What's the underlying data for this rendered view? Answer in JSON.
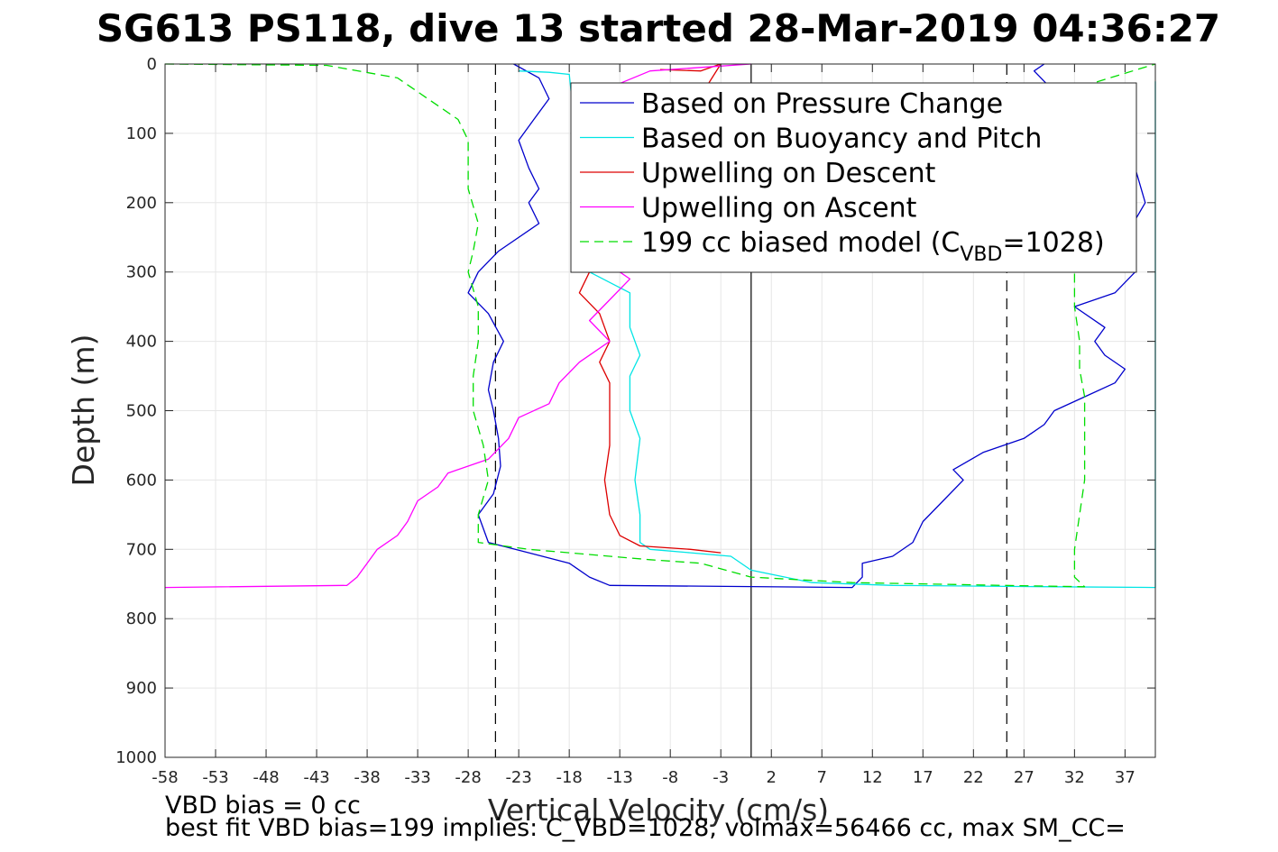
{
  "chart_data": {
    "type": "line",
    "title": "SG613 PS118, dive 13 started 28-Mar-2019 04:36:27",
    "xlabel": "Vertical Velocity (cm/s)",
    "ylabel": "Depth (m)",
    "xlim": [
      -58,
      40
    ],
    "ylim": [
      0,
      1000
    ],
    "y_reversed": true,
    "grid": true,
    "legend_location": "top-right",
    "x_ticks": [
      -58,
      -53,
      -48,
      -43,
      -38,
      -33,
      -28,
      -23,
      -18,
      -13,
      -8,
      -3,
      2,
      7,
      12,
      17,
      22,
      27,
      32,
      37
    ],
    "x_tick_labels": [
      "-58",
      "-53",
      "-48",
      "-43",
      "-38",
      "-33",
      "-28",
      "-23",
      "-18",
      "-13",
      "-8",
      "-3",
      "2",
      "7",
      "12",
      "17",
      "22",
      "27",
      "32",
      "37"
    ],
    "y_ticks": [
      0,
      100,
      200,
      300,
      400,
      500,
      600,
      700,
      800,
      900,
      1000
    ],
    "y_tick_labels": [
      "0",
      "100",
      "200",
      "300",
      "400",
      "500",
      "600",
      "700",
      "800",
      "900",
      "1000"
    ],
    "reference_lines": [
      {
        "x": -25.3,
        "style": "dashed",
        "color": "#000000"
      },
      {
        "x": 0,
        "style": "solid",
        "color": "#000000"
      },
      {
        "x": 25.3,
        "style": "dashed",
        "color": "#000000"
      }
    ],
    "series": [
      {
        "name": "Based on Pressure Change",
        "color": "#0000cc",
        "style": "solid",
        "points": [
          [
            -23.5,
            0
          ],
          [
            -21,
            20
          ],
          [
            -20,
            50
          ],
          [
            -21.5,
            80
          ],
          [
            -23,
            110
          ],
          [
            -22,
            150
          ],
          [
            -21,
            180
          ],
          [
            -22,
            200
          ],
          [
            -21,
            230
          ],
          [
            -25,
            270
          ],
          [
            -27,
            300
          ],
          [
            -28,
            330
          ],
          [
            -26,
            360
          ],
          [
            -24.5,
            400
          ],
          [
            -25.5,
            430
          ],
          [
            -26,
            470
          ],
          [
            -25.5,
            500
          ],
          [
            -25,
            540
          ],
          [
            -24.8,
            580
          ],
          [
            -25.5,
            620
          ],
          [
            -27,
            650
          ],
          [
            -26,
            690
          ],
          [
            -22,
            705
          ],
          [
            -18,
            720
          ],
          [
            -16,
            740
          ],
          [
            -14,
            752
          ],
          [
            10,
            755
          ],
          [
            11,
            740
          ],
          [
            11,
            720
          ],
          [
            14,
            710
          ],
          [
            16,
            690
          ],
          [
            17,
            660
          ],
          [
            19,
            630
          ],
          [
            21,
            600
          ],
          [
            20,
            585
          ],
          [
            23,
            560
          ],
          [
            27,
            540
          ],
          [
            29,
            520
          ],
          [
            30,
            500
          ],
          [
            33,
            480
          ],
          [
            36,
            460
          ],
          [
            37,
            440
          ],
          [
            35,
            420
          ],
          [
            34,
            400
          ],
          [
            35,
            380
          ],
          [
            32,
            350
          ],
          [
            36,
            330
          ],
          [
            38,
            300
          ],
          [
            37,
            250
          ],
          [
            39,
            200
          ],
          [
            38,
            150
          ],
          [
            35,
            100
          ],
          [
            30,
            40
          ],
          [
            28,
            10
          ],
          [
            29,
            0
          ]
        ]
      },
      {
        "name": "Based on Buoyancy and Pitch",
        "color": "#00e5e5",
        "style": "solid",
        "points": [
          [
            -23,
            10
          ],
          [
            -20,
            12
          ],
          [
            -18,
            15
          ],
          [
            -16,
            300
          ],
          [
            -12,
            330
          ],
          [
            -12,
            380
          ],
          [
            -11,
            420
          ],
          [
            -12,
            450
          ],
          [
            -12,
            500
          ],
          [
            -11,
            540
          ],
          [
            -11.5,
            600
          ],
          [
            -11,
            650
          ],
          [
            -11,
            690
          ],
          [
            -10,
            700
          ],
          [
            -6,
            705
          ],
          [
            -2,
            710
          ],
          [
            0,
            730
          ],
          [
            6,
            748
          ],
          [
            14,
            752
          ],
          [
            30,
            754
          ],
          [
            40,
            755
          ],
          [
            40,
            754
          ],
          [
            40,
            25
          ]
        ]
      },
      {
        "name": "Upwelling on Descent",
        "color": "#dd0000",
        "style": "solid",
        "points": [
          [
            -9,
            8
          ],
          [
            -5,
            10
          ],
          [
            -4,
            5
          ],
          [
            -3,
            0
          ],
          [
            -16,
            300
          ],
          [
            -17,
            330
          ],
          [
            -15,
            360
          ],
          [
            -14,
            400
          ],
          [
            -15,
            430
          ],
          [
            -14,
            460
          ],
          [
            -14,
            500
          ],
          [
            -14,
            550
          ],
          [
            -14.5,
            600
          ],
          [
            -14,
            650
          ],
          [
            -13,
            680
          ],
          [
            -11,
            695
          ],
          [
            -6,
            700
          ],
          [
            -3,
            705
          ]
        ]
      },
      {
        "name": "Upwelling on Ascent",
        "color": "#ff00ff",
        "style": "solid",
        "points": [
          [
            -58,
            755
          ],
          [
            -40,
            752
          ],
          [
            -39,
            740
          ],
          [
            -38,
            720
          ],
          [
            -37,
            700
          ],
          [
            -35,
            680
          ],
          [
            -34,
            660
          ],
          [
            -33,
            630
          ],
          [
            -31,
            610
          ],
          [
            -30,
            590
          ],
          [
            -26,
            570
          ],
          [
            -24,
            540
          ],
          [
            -23,
            510
          ],
          [
            -20,
            490
          ],
          [
            -19,
            460
          ],
          [
            -17,
            430
          ],
          [
            -14,
            400
          ],
          [
            -16,
            370
          ],
          [
            -14,
            340
          ],
          [
            -12,
            310
          ],
          [
            -13,
            300
          ],
          [
            -17,
            80
          ],
          [
            -15,
            40
          ],
          [
            -10,
            10
          ],
          [
            -5,
            5
          ],
          [
            0,
            0
          ]
        ]
      },
      {
        "name": "199 cc biased model (C",
        "color": "#00dd00",
        "style": "dashed",
        "points": [
          [
            -58,
            0
          ],
          [
            -42,
            2
          ],
          [
            -35,
            20
          ],
          [
            -32,
            50
          ],
          [
            -29,
            80
          ],
          [
            -28,
            110
          ],
          [
            -28,
            150
          ],
          [
            -28,
            180
          ],
          [
            -27,
            230
          ],
          [
            -27.5,
            270
          ],
          [
            -28,
            300
          ],
          [
            -27,
            350
          ],
          [
            -27,
            400
          ],
          [
            -27.5,
            450
          ],
          [
            -27.5,
            500
          ],
          [
            -26.5,
            550
          ],
          [
            -26,
            600
          ],
          [
            -27,
            650
          ],
          [
            -27,
            690
          ],
          [
            -22,
            700
          ],
          [
            -10,
            715
          ],
          [
            -5,
            720
          ],
          [
            0,
            740
          ],
          [
            10,
            748
          ],
          [
            25,
            752
          ],
          [
            33,
            754
          ],
          [
            32,
            740
          ],
          [
            32,
            700
          ],
          [
            32.5,
            650
          ],
          [
            33,
            600
          ],
          [
            33,
            560
          ],
          [
            33,
            520
          ],
          [
            33,
            480
          ],
          [
            32.5,
            440
          ],
          [
            32.5,
            400
          ],
          [
            32,
            350
          ],
          [
            32,
            300
          ],
          [
            33,
            250
          ],
          [
            33,
            200
          ],
          [
            33,
            150
          ],
          [
            33,
            100
          ],
          [
            31,
            40
          ],
          [
            40,
            0
          ]
        ]
      }
    ],
    "legend": [
      {
        "label": "Based on Pressure Change",
        "color": "#0000cc",
        "style": "solid"
      },
      {
        "label": "Based on Buoyancy and Pitch",
        "color": "#00e5e5",
        "style": "solid"
      },
      {
        "label": "Upwelling on Descent",
        "color": "#dd0000",
        "style": "solid"
      },
      {
        "label": "Upwelling on Ascent",
        "color": "#ff00ff",
        "style": "solid"
      },
      {
        "label": "199 cc biased model (C",
        "label_sub": "VBD",
        "label_tail": "=1028)",
        "color": "#00dd00",
        "style": "dashed"
      }
    ]
  },
  "footer": {
    "line1": "VBD bias = 0 cc",
    "line2": "best fit VBD bias=199 implies: C_VBD=1028, volmax=56466 cc, max SM_CC="
  }
}
